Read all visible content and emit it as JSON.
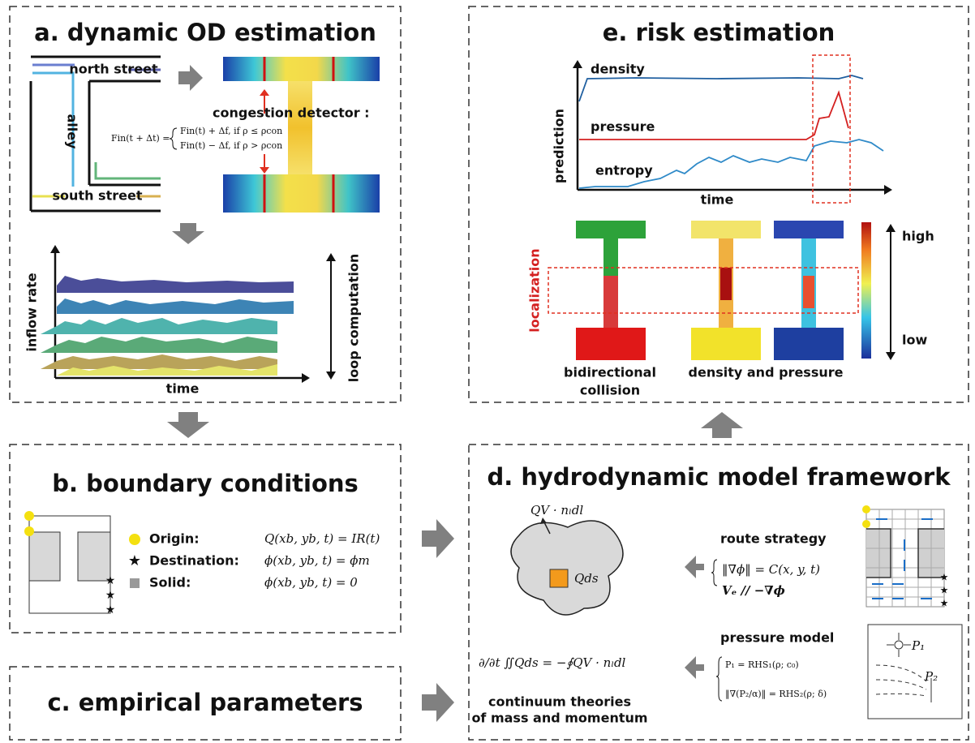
{
  "panels": {
    "a": {
      "title": "a. dynamic OD estimation",
      "north_street": "north street",
      "south_street": "south street",
      "alley": "alley",
      "detector": "congestion detector :",
      "formula_lhs": "Fin(t + Δt) =",
      "formula_case1": "Fin(t) + Δf, if ρ ≤ ρcon",
      "formula_case2": "Fin(t) − Δf, if ρ > ρcon",
      "y_label": "inflow rate",
      "x_label": "time",
      "loop": "loop computation"
    },
    "b": {
      "title": "b. boundary conditions",
      "legend": [
        {
          "label": "Origin:",
          "formula": "Q(xb, yb, t) = IR(t)"
        },
        {
          "label": "Destination:",
          "formula": "ϕ(xb, yb, t) = ϕm"
        },
        {
          "label": "Solid:",
          "formula": "ϕ(xb, yb, t) = 0"
        }
      ]
    },
    "c": {
      "title": "c. empirical parameters"
    },
    "d": {
      "title": "d. hydrodynamic model framework",
      "flux": "QV · nₗdl",
      "source": "Qds",
      "equation": "∂/∂t ∬Qds = −∮QV · nₗdl",
      "caption": [
        "continuum theories",
        "of mass and momentum"
      ],
      "route_title": "route strategy",
      "route_eqs": [
        "‖∇ϕ‖ = C(x, y, t)",
        "Vₑ // −∇ϕ"
      ],
      "pressure_title": "pressure model",
      "pressure_eqs": [
        "P₁ = RHS₁(ρ; c₀)",
        "‖∇(P₂/α)‖ = RHS₂(ρ; δ)"
      ],
      "p1": "P₁",
      "p2": "P₂"
    },
    "e": {
      "title": "e. risk estimation",
      "density": "density",
      "pressure": "pressure",
      "entropy": "entropy",
      "y_label": "prediction",
      "x_label": "time",
      "localization": "localization",
      "high": "high",
      "low": "low",
      "caption_left": [
        "bidirectional",
        "collision"
      ],
      "caption_right": "density and pressure"
    }
  }
}
